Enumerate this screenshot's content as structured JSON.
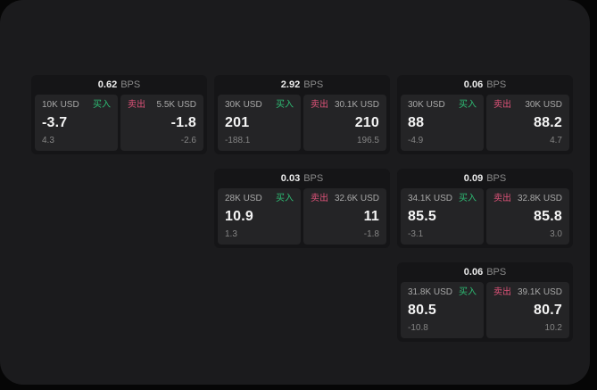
{
  "labels": {
    "buy": "买入",
    "sell": "卖出",
    "bps_unit": "BPS"
  },
  "colors": {
    "page_bg": "#060606",
    "window_bg": "#1B1B1D",
    "card_bg": "#151517",
    "panel_bg": "#242426",
    "buy_green": "#2EBD74",
    "sell_red": "#DD5278"
  },
  "cards": [
    {
      "bps": "0.62",
      "buy": {
        "amount": "10K USD",
        "value": "-3.7",
        "delta": "4.3"
      },
      "sell": {
        "amount": "5.5K USD",
        "value": "-1.8",
        "delta": "-2.6"
      }
    },
    {
      "bps": "2.92",
      "buy": {
        "amount": "30K USD",
        "value": "201",
        "delta": "-188.1"
      },
      "sell": {
        "amount": "30.1K USD",
        "value": "210",
        "delta": "196.5"
      }
    },
    {
      "bps": "0.06",
      "buy": {
        "amount": "30K USD",
        "value": "88",
        "delta": "-4.9"
      },
      "sell": {
        "amount": "30K USD",
        "value": "88.2",
        "delta": "4.7"
      }
    },
    {
      "bps": "0.03",
      "buy": {
        "amount": "28K USD",
        "value": "10.9",
        "delta": "1.3"
      },
      "sell": {
        "amount": "32.6K USD",
        "value": "11",
        "delta": "-1.8"
      }
    },
    {
      "bps": "0.09",
      "buy": {
        "amount": "34.1K USD",
        "value": "85.5",
        "delta": "-3.1"
      },
      "sell": {
        "amount": "32.8K USD",
        "value": "85.8",
        "delta": "3.0"
      }
    },
    {
      "bps": "0.06",
      "buy": {
        "amount": "31.8K USD",
        "value": "80.5",
        "delta": "-10.8"
      },
      "sell": {
        "amount": "39.1K USD",
        "value": "80.7",
        "delta": "10.2"
      }
    }
  ]
}
